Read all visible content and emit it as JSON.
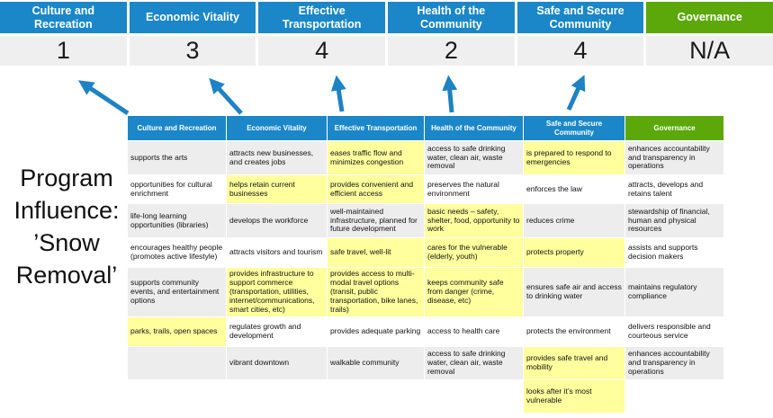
{
  "colors": {
    "header_blue": "#1b87c8",
    "header_green": "#5ca80a",
    "highlight_yellow": "#ffff9e",
    "row_gray": "#ededed",
    "score_bg": "#efefef",
    "arrow_blue": "#1e82c4"
  },
  "program_label": "Program Influence: ’Snow Removal’",
  "scoreboard": {
    "columns": [
      {
        "label": "Culture and Recreation",
        "score": "1",
        "theme": "blue"
      },
      {
        "label": "Economic Vitality",
        "score": "3",
        "theme": "blue"
      },
      {
        "label": "Effective Transportation",
        "score": "4",
        "theme": "blue"
      },
      {
        "label": "Health of the Community",
        "score": "2",
        "theme": "blue"
      },
      {
        "label": "Safe and Secure Community",
        "score": "4",
        "theme": "blue"
      },
      {
        "label": "Governance",
        "score": "N/A",
        "theme": "green"
      }
    ]
  },
  "matrix": {
    "headers": [
      {
        "label": "Culture and Recreation",
        "theme": "blue"
      },
      {
        "label": "Economic Vitality",
        "theme": "blue"
      },
      {
        "label": "Effective Transportation",
        "theme": "blue"
      },
      {
        "label": "Health of the Community",
        "theme": "blue"
      },
      {
        "label": "Safe and Secure Community",
        "theme": "blue"
      },
      {
        "label": "Governance",
        "theme": "green"
      }
    ],
    "rows": [
      {
        "cells": [
          {
            "text": "supports the arts",
            "highlight": false
          },
          {
            "text": "attracts new businesses, and creates jobs",
            "highlight": false
          },
          {
            "text": "eases traffic flow and minimizes congestion",
            "highlight": true
          },
          {
            "text": "access to safe drinking water, clean air, waste removal",
            "highlight": false
          },
          {
            "text": "is prepared to respond to emergencies",
            "highlight": true
          },
          {
            "text": "enhances accountability and transparency in operations",
            "highlight": false
          }
        ]
      },
      {
        "cells": [
          {
            "text": "opportunities for cultural enrichment",
            "highlight": false
          },
          {
            "text": "helps retain current businesses",
            "highlight": true
          },
          {
            "text": "provides convenient and efficient access",
            "highlight": true
          },
          {
            "text": "preserves the natural environment",
            "highlight": false
          },
          {
            "text": "enforces the law",
            "highlight": false
          },
          {
            "text": "attracts, develops and retains talent",
            "highlight": false
          }
        ]
      },
      {
        "cells": [
          {
            "text": "life-long learning opportunities (libraries)",
            "highlight": false
          },
          {
            "text": "develops the workforce",
            "highlight": false
          },
          {
            "text": "well-maintained infrastructure, planned for future development",
            "highlight": false
          },
          {
            "text": "basic needs – safety, shelter, food, opportunity to work",
            "highlight": true
          },
          {
            "text": "reduces crime",
            "highlight": false
          },
          {
            "text": "stewardship of financial, human and physical resources",
            "highlight": false
          }
        ]
      },
      {
        "cells": [
          {
            "text": "encourages healthy people (promotes active lifestyle)",
            "highlight": false
          },
          {
            "text": "attracts visitors and tourism",
            "highlight": false
          },
          {
            "text": "safe travel, well-lit",
            "highlight": true
          },
          {
            "text": "cares for the vulnerable (elderly, youth)",
            "highlight": true
          },
          {
            "text": "protects property",
            "highlight": true
          },
          {
            "text": "assists and supports decision makers",
            "highlight": false
          }
        ]
      },
      {
        "cells": [
          {
            "text": "supports community events, and entertainment options",
            "highlight": false
          },
          {
            "text": "provides infrastructure to support commerce (transportation, utilities, internet/communications, smart cities, etc)",
            "highlight": true
          },
          {
            "text": "provides access to multi-modal travel options (transit, public transportation, bike lanes, trails)",
            "highlight": true
          },
          {
            "text": "keeps community safe from danger (crime, disease, etc)",
            "highlight": true
          },
          {
            "text": "ensures safe air and access to drinking water",
            "highlight": false
          },
          {
            "text": "maintains regulatory compliance",
            "highlight": false
          }
        ]
      },
      {
        "cells": [
          {
            "text": "parks, trails, open spaces",
            "highlight": true
          },
          {
            "text": "regulates growth and development",
            "highlight": false
          },
          {
            "text": "provides adequate parking",
            "highlight": false
          },
          {
            "text": "access to health care",
            "highlight": false
          },
          {
            "text": "protects the environment",
            "highlight": false
          },
          {
            "text": "delivers responsible and courteous service",
            "highlight": false
          }
        ]
      },
      {
        "cells": [
          {
            "text": "",
            "highlight": false
          },
          {
            "text": "vibrant downtown",
            "highlight": false
          },
          {
            "text": "walkable community",
            "highlight": false
          },
          {
            "text": "access to safe drinking water, clean air, waste removal",
            "highlight": false
          },
          {
            "text": "provides safe travel and mobility",
            "highlight": true
          },
          {
            "text": "enhances accountability and transparency in operations",
            "highlight": false
          }
        ]
      },
      {
        "cells": [
          {
            "text": "",
            "highlight": false
          },
          {
            "text": "",
            "highlight": false
          },
          {
            "text": "",
            "highlight": false
          },
          {
            "text": "",
            "highlight": false
          },
          {
            "text": "looks after it’s most vulnerable",
            "highlight": true
          },
          {
            "text": "",
            "highlight": false
          }
        ]
      }
    ]
  }
}
